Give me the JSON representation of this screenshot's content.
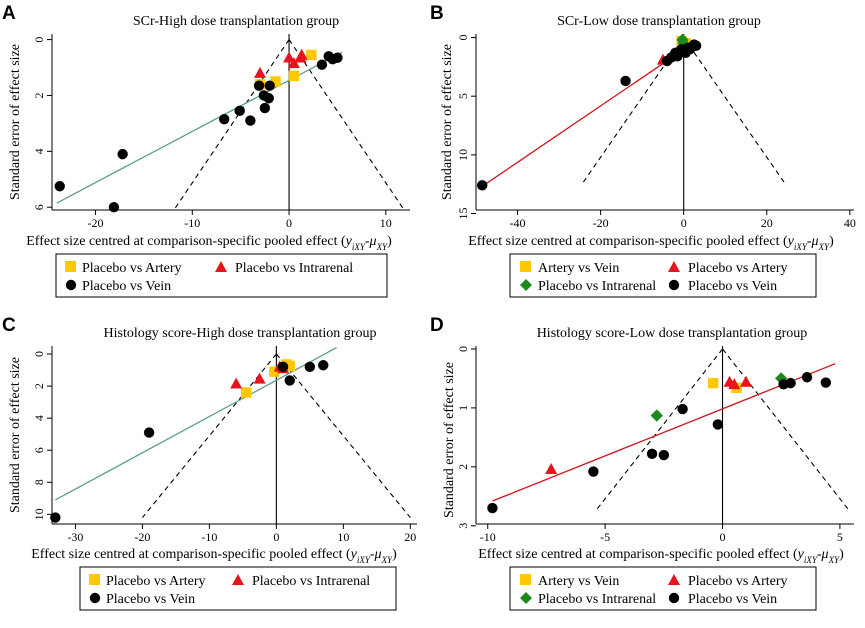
{
  "colors": {
    "placebo_vs_artery_square": "#FFC800",
    "artery_vs_vein_square": "#FFC800",
    "triangle": "#E8141B",
    "diamond": "#1E8A1E",
    "vein_circle": "#000000",
    "fit_teal": "#5C9C8A",
    "fit_red": "#D4141C"
  },
  "chart_data": [
    {
      "panel": "A",
      "type": "scatter",
      "title": "SCr-High dose transplantation group",
      "xlabel": "Effect size centred at comparison-specific pooled effect (",
      "xlabel_math": "y",
      "xlabel_sub": "iXY",
      "xlabel_minus": "-",
      "xlabel_mu": "μ",
      "xlabel_mu_sub": "XY",
      "xlabel_close": ")",
      "ylabel": "Standard error of effect size",
      "xlim": [
        -24.5,
        12.5
      ],
      "ylim": [
        -0.2,
        6.1
      ],
      "xticks": [
        "-20",
        "-10",
        "0",
        "10"
      ],
      "xtick_values": [
        -20,
        -10,
        0,
        10
      ],
      "yticks": [
        "0",
        "2",
        "4",
        "6"
      ],
      "ytick_values": [
        0,
        2,
        4,
        6
      ],
      "funnel": {
        "apex_x": 0,
        "bottom_y": 6.1,
        "bottom_left_x": -11.9,
        "bottom_right_x": 11.9
      },
      "fit_line": {
        "color": "teal",
        "x": [
          -24.0,
          5.5
        ],
        "y": [
          5.85,
          0.45
        ]
      },
      "series": [
        {
          "name": "Placebo vs Artery",
          "marker": "square",
          "points": [
            [
              2.3,
              0.55
            ],
            [
              0.5,
              1.3
            ],
            [
              -1.4,
              1.5
            ],
            [
              -3.0,
              1.6
            ]
          ]
        },
        {
          "name": "Placebo vs Intrarenal",
          "marker": "triangle",
          "points": [
            [
              -3.0,
              1.2
            ],
            [
              0.0,
              0.65
            ],
            [
              0.5,
              0.85
            ],
            [
              1.2,
              0.65
            ],
            [
              1.3,
              0.55
            ]
          ]
        },
        {
          "name": "Placebo vs Vein",
          "marker": "circle",
          "points": [
            [
              -23.7,
              5.25
            ],
            [
              -18.1,
              6.0
            ],
            [
              -17.2,
              4.1
            ],
            [
              -6.7,
              2.85
            ],
            [
              -5.1,
              2.55
            ],
            [
              -4.0,
              2.9
            ],
            [
              -3.1,
              1.65
            ],
            [
              -2.6,
              2.0
            ],
            [
              -2.5,
              2.45
            ],
            [
              -2.1,
              2.1
            ],
            [
              -2.0,
              1.65
            ],
            [
              3.4,
              0.9
            ],
            [
              4.1,
              0.6
            ],
            [
              4.5,
              0.7
            ],
            [
              5.0,
              0.65
            ]
          ]
        }
      ],
      "legend": {
        "position": "bottom",
        "items": [
          "Placebo vs Artery",
          "Placebo vs Intrarenal",
          "Placebo vs Vein"
        ]
      }
    },
    {
      "panel": "B",
      "type": "scatter",
      "title": "SCr-Low dose transplantation group",
      "xlabel": "Effect size centred at comparison-specific pooled effect (",
      "xlabel_math": "y",
      "xlabel_sub": "iXY",
      "xlabel_minus": "-",
      "xlabel_mu": "μ",
      "xlabel_mu_sub": "XY",
      "xlabel_close": ")",
      "ylabel": "Standard error of effect size",
      "xlim": [
        -50,
        41
      ],
      "ylim": [
        -0.3,
        14.7
      ],
      "xticks": [
        "-40",
        "-20",
        "0",
        "20",
        "40"
      ],
      "xtick_values": [
        -40,
        -20,
        0,
        20,
        40
      ],
      "yticks": [
        "0",
        "5",
        "10",
        "15"
      ],
      "ytick_values": [
        0,
        5,
        10,
        15
      ],
      "funnel": {
        "apex_x": 0,
        "bottom_y": 12.6,
        "bottom_left_x": -24.7,
        "bottom_right_x": 24.7
      },
      "fit_line": {
        "color": "red",
        "x": [
          -49.0,
          3.0
        ],
        "y": [
          12.8,
          0.3
        ]
      },
      "series": [
        {
          "name": "Artery vs Vein",
          "marker": "square",
          "points": [
            [
              -0.5,
              0.3
            ],
            [
              0.5,
              0.5
            ]
          ]
        },
        {
          "name": "Placebo vs Artery",
          "marker": "triangle",
          "points": [
            [
              -5.0,
              1.9
            ],
            [
              -1.5,
              1.2
            ],
            [
              0.5,
              0.9
            ]
          ]
        },
        {
          "name": "Placebo vs Intrarenal",
          "marker": "diamond",
          "points": [
            [
              -0.3,
              0.2
            ],
            [
              0.0,
              0.5
            ]
          ]
        },
        {
          "name": "Placebo vs Vein",
          "marker": "circle",
          "points": [
            [
              -48.5,
              12.6
            ],
            [
              -14.0,
              3.7
            ],
            [
              -4.0,
              2.0
            ],
            [
              -3.0,
              1.7
            ],
            [
              -2.0,
              1.3
            ],
            [
              -1.5,
              1.6
            ],
            [
              -1.0,
              1.2
            ],
            [
              -0.5,
              1.0
            ],
            [
              0.5,
              1.3
            ],
            [
              1.0,
              0.9
            ],
            [
              1.5,
              1.0
            ],
            [
              2.0,
              0.8
            ],
            [
              2.5,
              0.6
            ],
            [
              3.0,
              0.7
            ]
          ]
        }
      ],
      "legend": {
        "position": "bottom",
        "items": [
          "Artery vs Vein",
          "Placebo vs Artery",
          "Placebo vs Intrarenal",
          "Placebo vs Vein"
        ]
      }
    },
    {
      "panel": "C",
      "type": "scatter",
      "title": "Histology score-High dose transplantation group",
      "xlabel": "Effect size centred at comparison-specific pooled effect (",
      "xlabel_math": "y",
      "xlabel_sub": "iXY",
      "xlabel_minus": "-",
      "xlabel_mu": "μ",
      "xlabel_mu_sub": "XY",
      "xlabel_close": ")",
      "ylabel": "Standard error of effect size",
      "xlim": [
        -33.5,
        21
      ],
      "ylim": [
        -0.5,
        10.6
      ],
      "xticks": [
        "-30",
        "-20",
        "-10",
        "0",
        "10",
        "20"
      ],
      "xtick_values": [
        -30,
        -20,
        -10,
        0,
        10,
        20
      ],
      "yticks": [
        "0",
        "2",
        "4",
        "6",
        "8",
        "10"
      ],
      "ytick_values": [
        0,
        2,
        4,
        6,
        8,
        10
      ],
      "funnel": {
        "apex_x": 0,
        "bottom_y": 10.2,
        "bottom_left_x": -20.0,
        "bottom_right_x": 20.0
      },
      "fit_line": {
        "color": "teal",
        "x": [
          -33.0,
          9.0
        ],
        "y": [
          9.1,
          -0.4
        ]
      },
      "series": [
        {
          "name": "Placebo vs Artery",
          "marker": "square",
          "points": [
            [
              -4.5,
              2.4
            ],
            [
              -0.3,
              1.1
            ],
            [
              1.5,
              0.65
            ],
            [
              2.0,
              0.75
            ]
          ]
        },
        {
          "name": "Placebo vs Intrarenal",
          "marker": "triangle",
          "points": [
            [
              -6.0,
              1.85
            ],
            [
              -2.5,
              1.55
            ],
            [
              0.5,
              0.8
            ],
            [
              1.0,
              0.9
            ]
          ]
        },
        {
          "name": "Placebo vs Vein",
          "marker": "circle",
          "points": [
            [
              -33.0,
              10.2
            ],
            [
              -19.0,
              4.9
            ],
            [
              1.0,
              0.8
            ],
            [
              2.0,
              1.65
            ],
            [
              5.0,
              0.8
            ],
            [
              7.0,
              0.7
            ]
          ]
        }
      ],
      "legend": {
        "position": "bottom",
        "items": [
          "Placebo vs Artery",
          "Placebo vs Intrarenal",
          "Placebo vs Vein"
        ]
      }
    },
    {
      "panel": "D",
      "type": "scatter",
      "title": "Histology score-Low dose transplantation group",
      "xlabel": "Effect size centred at comparison-specific pooled effect (",
      "xlabel_math": "y",
      "xlabel_sub": "iXY",
      "xlabel_minus": "-",
      "xlabel_mu": "μ",
      "xlabel_mu_sub": "XY",
      "xlabel_close": ")",
      "ylabel": "Standard error of effect size",
      "xlim": [
        -10.5,
        5.6
      ],
      "ylim": [
        -0.05,
        2.97
      ],
      "xticks": [
        "-10",
        "-5",
        "0",
        "5"
      ],
      "xtick_values": [
        -10,
        -5,
        0,
        5
      ],
      "yticks": [
        "0",
        "1",
        "2",
        "3"
      ],
      "ytick_values": [
        0,
        1,
        2,
        3
      ],
      "funnel": {
        "apex_x": 0,
        "bottom_y": 2.72,
        "bottom_left_x": -5.35,
        "bottom_right_x": 5.35
      },
      "fit_line": {
        "color": "red",
        "x": [
          -9.8,
          4.8
        ],
        "y": [
          2.58,
          0.25
        ]
      },
      "series": [
        {
          "name": "Artery vs Vein",
          "marker": "square",
          "points": [
            [
              -0.4,
              0.58
            ],
            [
              0.6,
              0.66
            ]
          ]
        },
        {
          "name": "Placebo vs Artery",
          "marker": "triangle",
          "points": [
            [
              -7.3,
              2.04
            ],
            [
              0.3,
              0.56
            ],
            [
              0.5,
              0.6
            ],
            [
              1.0,
              0.56
            ]
          ]
        },
        {
          "name": "Placebo vs Intrarenal",
          "marker": "diamond",
          "points": [
            [
              -2.8,
              1.13
            ],
            [
              2.5,
              0.5
            ]
          ]
        },
        {
          "name": "Placebo vs Vein",
          "marker": "circle",
          "points": [
            [
              -9.8,
              2.7
            ],
            [
              -5.5,
              2.08
            ],
            [
              -3.0,
              1.78
            ],
            [
              -2.5,
              1.8
            ],
            [
              -1.7,
              1.02
            ],
            [
              -0.2,
              1.28
            ],
            [
              2.6,
              0.6
            ],
            [
              2.9,
              0.58
            ],
            [
              3.6,
              0.48
            ],
            [
              4.4,
              0.57
            ]
          ]
        }
      ],
      "legend": {
        "position": "bottom",
        "items": [
          "Artery vs Vein",
          "Placebo vs Artery",
          "Placebo vs Intrarenal",
          "Placebo vs Vein"
        ]
      }
    }
  ]
}
